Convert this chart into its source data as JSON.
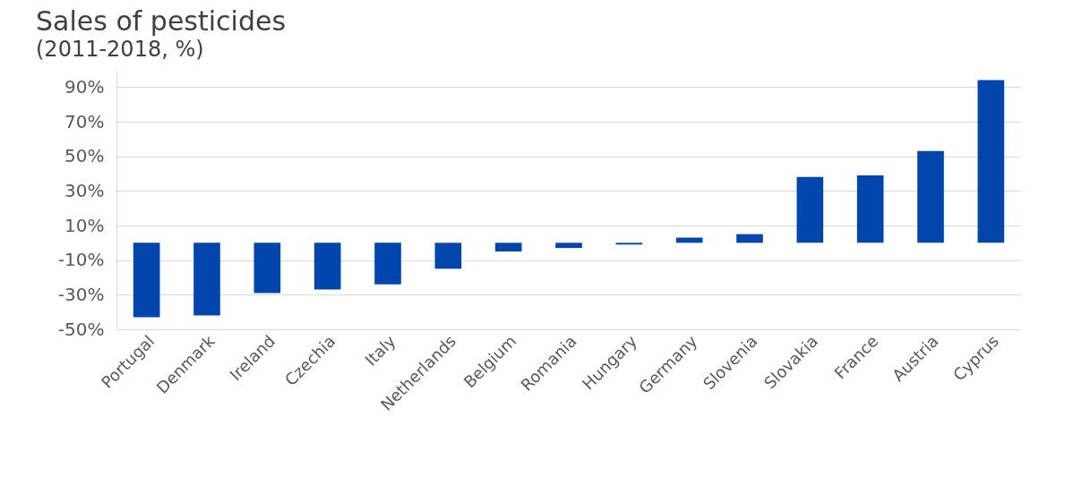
{
  "chart_data": {
    "type": "bar",
    "title": "Sales of pesticides",
    "subtitle": "(2011-2018, %)",
    "categories": [
      "Portugal",
      "Denmark",
      "Ireland",
      "Czechia",
      "Italy",
      "Netherlands",
      "Belgium",
      "Romania",
      "Hungary",
      "Germany",
      "Slovenia",
      "Slovakia",
      "France",
      "Austria",
      "Cyprus"
    ],
    "values": [
      -43,
      -42,
      -29,
      -27,
      -24,
      -15,
      -5,
      -3,
      -1,
      3,
      5,
      38,
      39,
      53,
      94
    ],
    "color": "#0046ad",
    "ylim": [
      -50,
      100
    ],
    "yticks": [
      {
        "value": -50,
        "label": "-50%"
      },
      {
        "value": -30,
        "label": "-30%"
      },
      {
        "value": -10,
        "label": "-10%"
      },
      {
        "value": 10,
        "label": "10%"
      },
      {
        "value": 30,
        "label": "30%"
      },
      {
        "value": 50,
        "label": "50%"
      },
      {
        "value": 70,
        "label": "70%"
      },
      {
        "value": 90,
        "label": "90%"
      }
    ],
    "grid": "y"
  }
}
